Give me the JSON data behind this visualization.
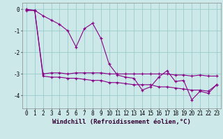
{
  "background_color": "#cce8e8",
  "line_color": "#880088",
  "grid_color": "#99cccc",
  "xlabel": "Windchill (Refroidissement éolien,°C)",
  "xlabel_fontsize": 6.5,
  "tick_fontsize": 5.5,
  "yticks": [
    0,
    -1,
    -2,
    -3,
    -4
  ],
  "xticks": [
    0,
    1,
    2,
    3,
    4,
    5,
    6,
    7,
    8,
    9,
    10,
    11,
    12,
    13,
    14,
    15,
    16,
    17,
    18,
    19,
    20,
    21,
    22,
    23
  ],
  "ylim": [
    -4.6,
    0.3
  ],
  "xlim": [
    -0.5,
    23.5
  ],
  "series1": [
    0.0,
    -0.05,
    -0.3,
    -0.5,
    -0.7,
    -1.0,
    -1.75,
    -0.9,
    -0.65,
    -1.35,
    -2.55,
    -3.05,
    -3.15,
    -3.2,
    -3.75,
    -3.6,
    -3.15,
    -2.85,
    -3.35,
    -3.3,
    -4.2,
    -3.8,
    -3.9,
    -3.5
  ],
  "series2": [
    -0.05,
    -0.05,
    -3.0,
    -2.95,
    -2.95,
    -3.0,
    -2.95,
    -2.95,
    -2.95,
    -2.95,
    -3.0,
    -3.0,
    -3.0,
    -3.0,
    -3.0,
    -3.0,
    -3.0,
    -3.0,
    -3.05,
    -3.05,
    -3.1,
    -3.05,
    -3.1,
    -3.1
  ],
  "series3": [
    -0.05,
    -0.05,
    -3.1,
    -3.15,
    -3.15,
    -3.2,
    -3.2,
    -3.25,
    -3.3,
    -3.3,
    -3.4,
    -3.4,
    -3.45,
    -3.5,
    -3.5,
    -3.5,
    -3.6,
    -3.6,
    -3.65,
    -3.7,
    -3.75,
    -3.75,
    -3.8,
    -3.5
  ]
}
